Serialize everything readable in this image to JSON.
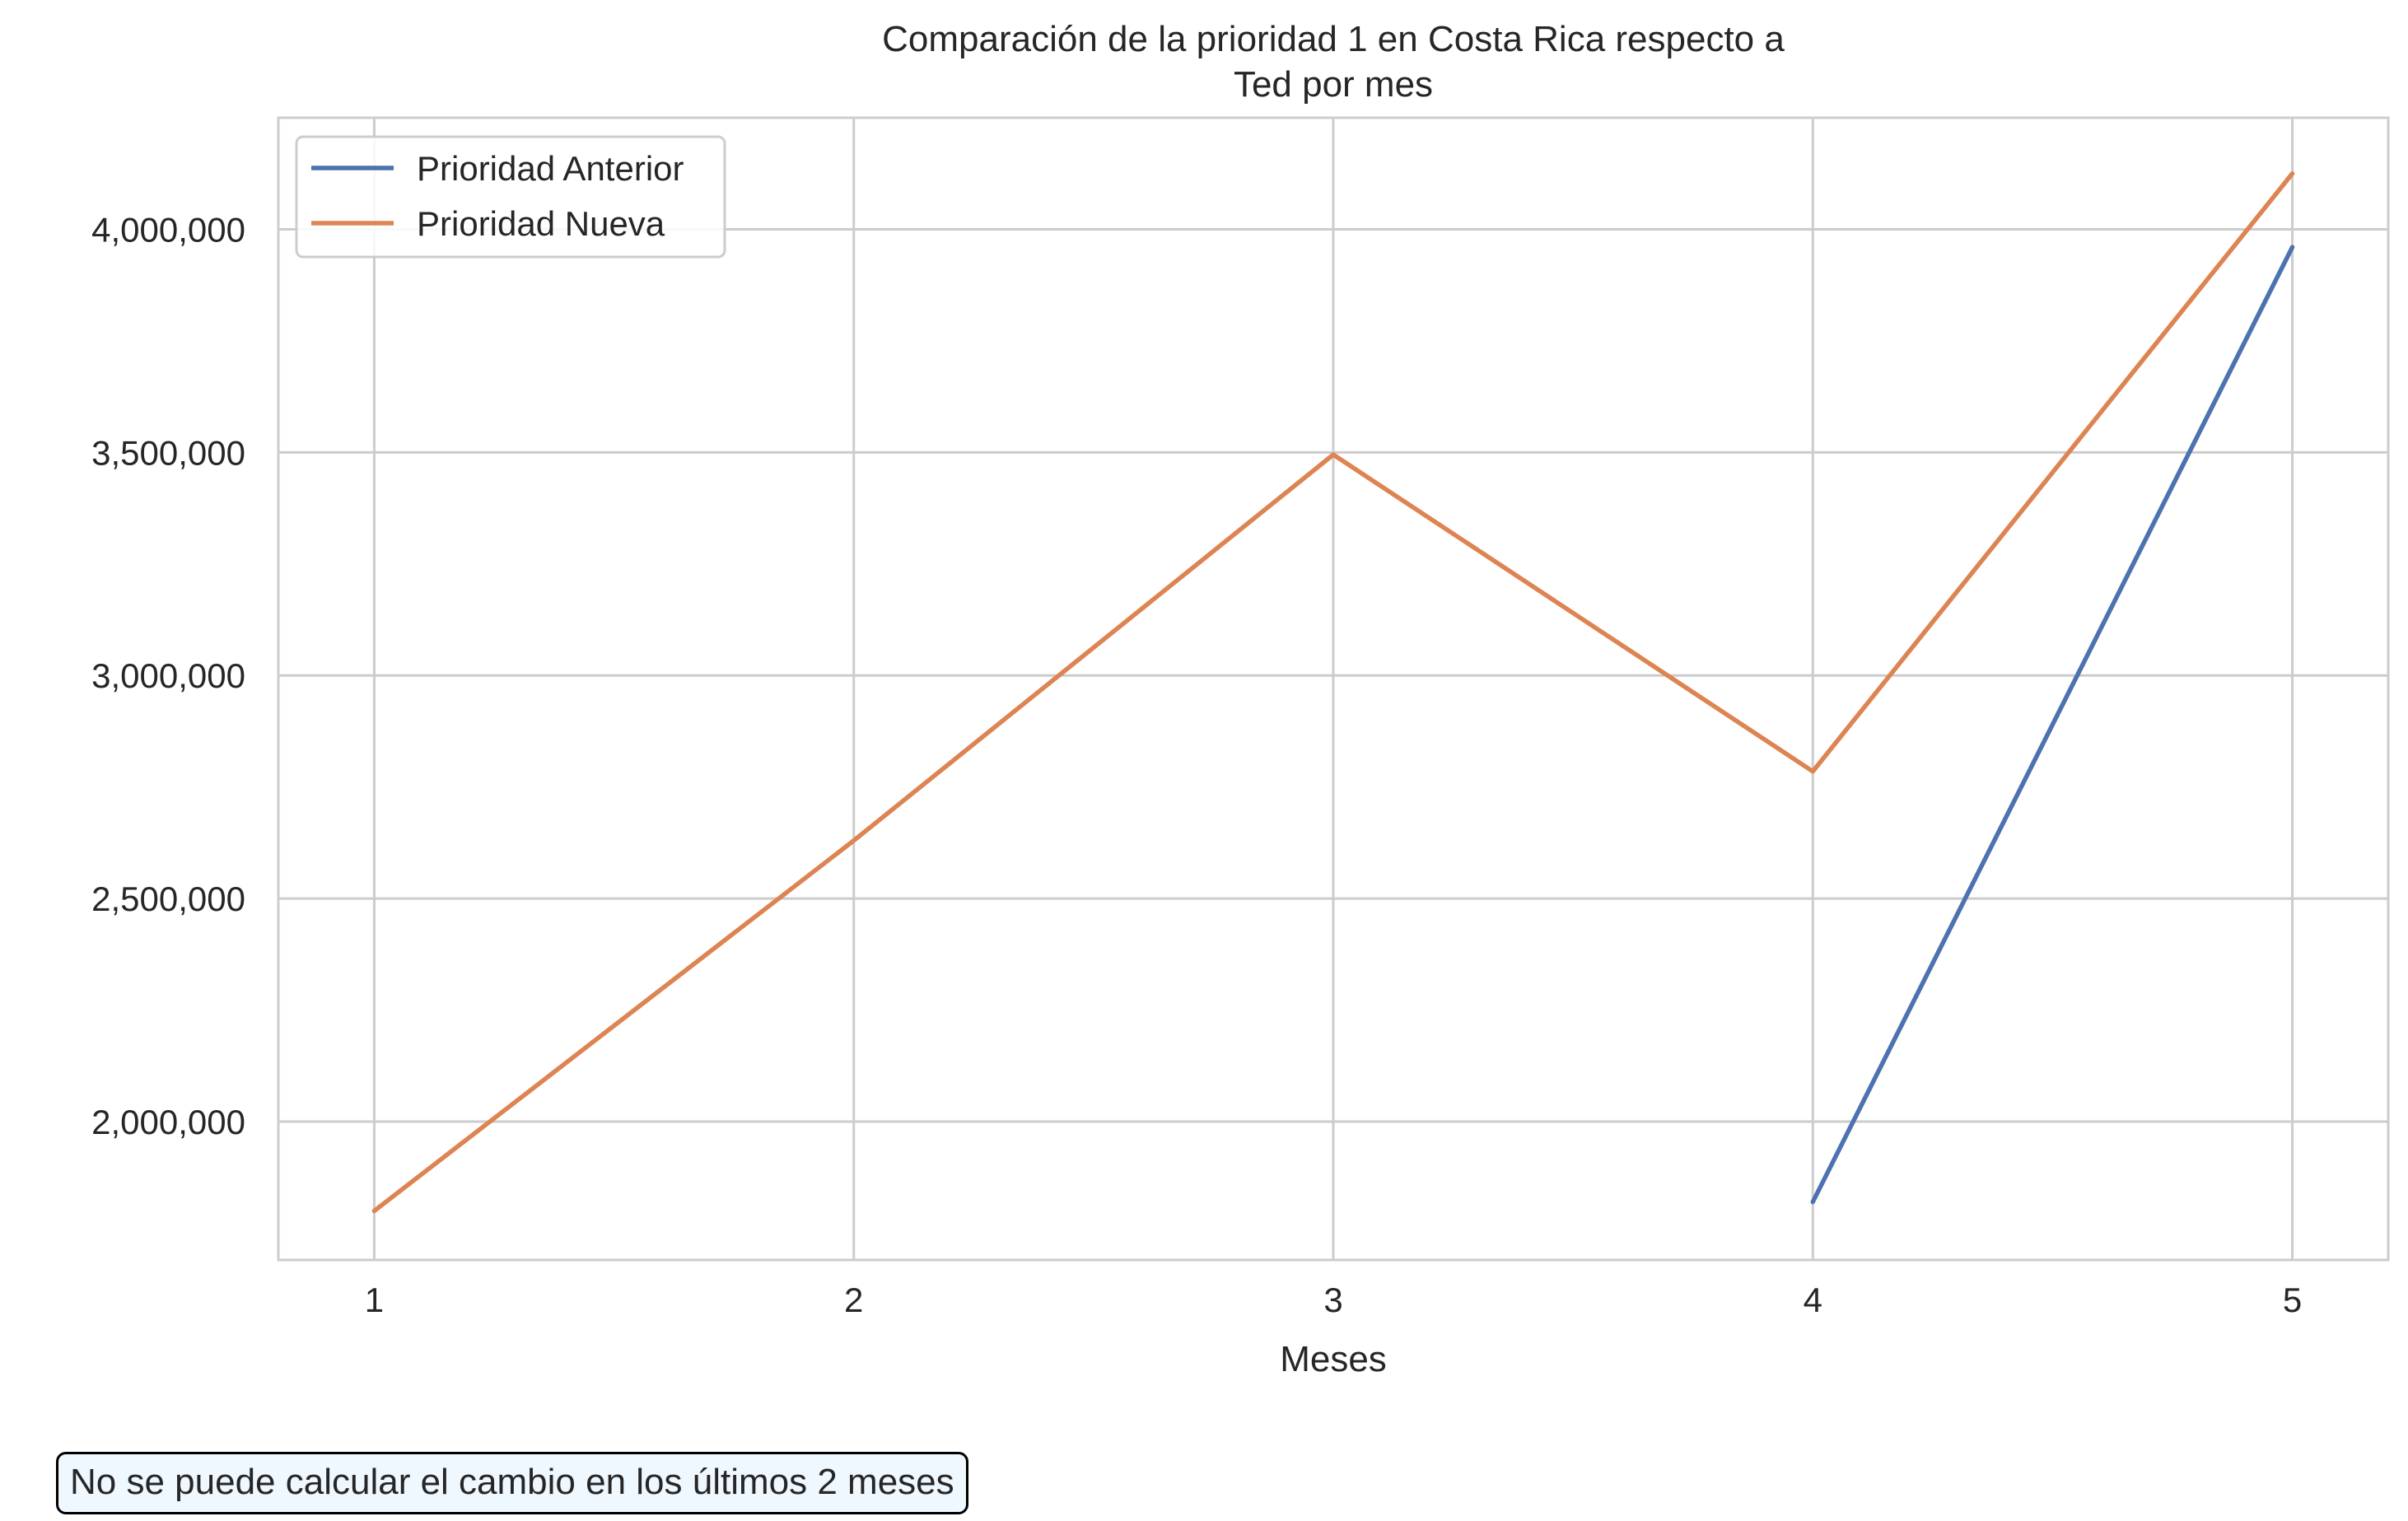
{
  "chart_data": {
    "type": "line",
    "title": [
      "Comparación de la prioridad 1 en Costa Rica respecto a",
      "Ted por mes"
    ],
    "xlabel": "Meses",
    "ylabel": "",
    "x": [
      1,
      2,
      3,
      4,
      5
    ],
    "x_tick_labels": [
      "1",
      "2",
      "3",
      "4",
      "5"
    ],
    "y_ticks": [
      2000000,
      2500000,
      3000000,
      3500000,
      4000000
    ],
    "y_tick_labels": [
      "2,000,000",
      "2,500,000",
      "3,000,000",
      "3,500,000",
      "4,000,000"
    ],
    "xlim": [
      0.8,
      5.2
    ],
    "ylim": [
      1690000,
      4250000
    ],
    "grid": true,
    "legend_position": "top-left",
    "series": [
      {
        "name": "Prioridad Anterior",
        "color": "#4c72b0",
        "x": [
          4,
          5
        ],
        "values": [
          1820000,
          3960000
        ]
      },
      {
        "name": "Prioridad Nueva",
        "color": "#dd8452",
        "x": [
          1,
          2,
          3,
          4,
          5
        ],
        "values": [
          1800000,
          2630000,
          3495000,
          2785000,
          4125000
        ]
      }
    ]
  },
  "note": "No se puede calcular el cambio en los últimos 2 meses"
}
